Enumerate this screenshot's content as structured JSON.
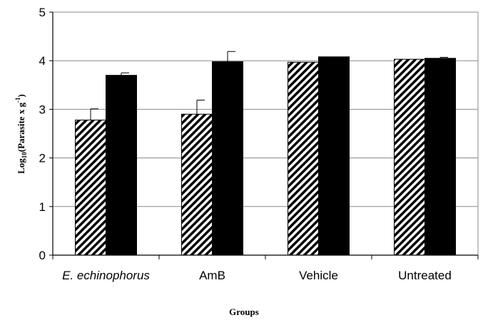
{
  "chart_data": {
    "type": "bar",
    "categories": [
      "E. echinophorus",
      "AmB",
      "Vehicle",
      "Untreated"
    ],
    "series": [
      {
        "pattern": "hatched",
        "values": [
          2.78,
          2.9,
          3.97,
          4.03
        ],
        "errors": [
          0.23,
          0.29,
          0.0,
          0.0
        ]
      },
      {
        "pattern": "solid",
        "values": [
          3.7,
          3.98,
          4.08,
          4.05
        ],
        "errors": [
          0.05,
          0.21,
          0.0,
          0.02
        ]
      }
    ],
    "xlabel": "Groups",
    "ylabel_main": "Log",
    "ylabel_sub": "10",
    "ylabel_mid": "(Parasite x g",
    "ylabel_sup": "-1",
    "ylabel_end": ")",
    "ylim": [
      0,
      5
    ],
    "yticks": [
      "0",
      "1",
      "2",
      "3",
      "4",
      "5"
    ],
    "grid": true,
    "legend": "none"
  }
}
